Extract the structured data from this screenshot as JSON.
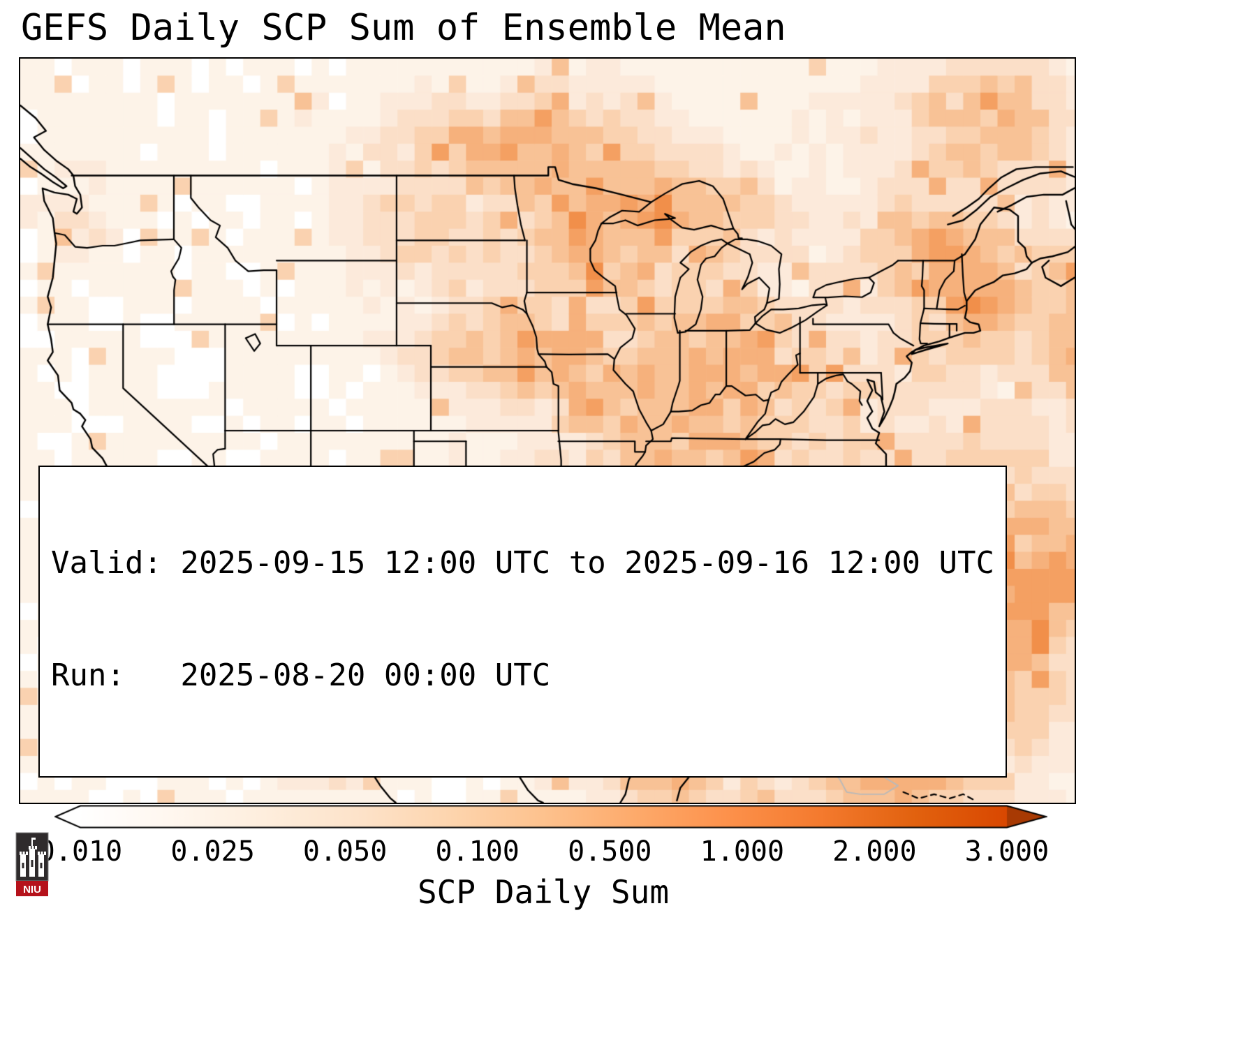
{
  "title": "GEFS Daily SCP Sum of Ensemble Mean",
  "info_box": {
    "valid_line": "Valid: 2025-09-15 12:00 UTC to 2025-09-16 12:00 UTC",
    "run_line": "Run:   2025-08-20 00:00 UTC"
  },
  "colorbar": {
    "ticks": [
      "0.010",
      "0.025",
      "0.050",
      "0.100",
      "0.500",
      "1.000",
      "2.000",
      "3.000"
    ],
    "label": "SCP Daily Sum"
  },
  "logo": {
    "text": "NIU"
  },
  "colors": {
    "land_border": "#000000",
    "minor_border": "#b9b9b9",
    "heat_levels": [
      "#ffffff",
      "#fdf3e8",
      "#fceadb",
      "#fbdfc8",
      "#fad2b0",
      "#f8c296",
      "#f6b17c",
      "#f4a062",
      "#f18f4a"
    ],
    "colorbar_gradient": [
      "#ffffff",
      "#fff7ef",
      "#feeedd",
      "#fde3ca",
      "#fdd5ae",
      "#fdc28e",
      "#fdaa6b",
      "#fd914b",
      "#f47a2e",
      "#e2620f",
      "#d94801"
    ],
    "colorbar_arrow_left": "#ffffff",
    "colorbar_arrow_right": "#a83a03",
    "logo_dark": "#2f2b2c",
    "logo_red": "#b5121b"
  },
  "chart_data": {
    "type": "heatmap",
    "title": "GEFS Daily SCP Sum of Ensemble Mean",
    "colorbar_label": "SCP Daily Sum",
    "colorbar_ticks": [
      0.01,
      0.025,
      0.05,
      0.1,
      0.5,
      1.0,
      2.0,
      3.0
    ],
    "colorbar_scale": "log",
    "colorbar_extends": "both",
    "valid_start": "2025-09-15 12:00 UTC",
    "valid_end": "2025-09-16 12:00 UTC",
    "run": "2025-08-20 00:00 UTC"
  }
}
